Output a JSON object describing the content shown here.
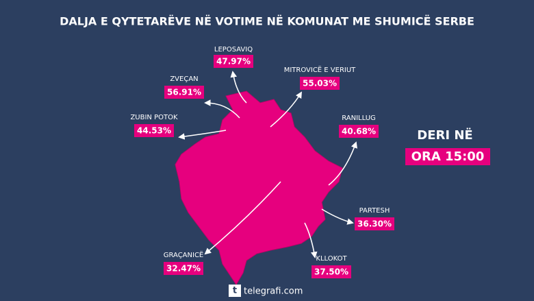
{
  "title": "DALJA E QYTETARËVE NË VOTIME NË KOMUNAT ME SHUMICË SERBE",
  "municipalities": [
    {
      "name": "LEPOSAVIQ",
      "turnout": "47.97%"
    },
    {
      "name": "ZVEÇAN",
      "turnout": "56.91%"
    },
    {
      "name": "ZUBIN POTOK",
      "turnout": "44.53%"
    },
    {
      "name": "MITROVICË E VERIUT",
      "turnout": "55.03%"
    },
    {
      "name": "RANILLUG",
      "turnout": "40.68%"
    },
    {
      "name": "PARTESH",
      "turnout": "36.30%"
    },
    {
      "name": "KLLOKOT",
      "turnout": "37.50%"
    },
    {
      "name": "GRAÇANICË",
      "turnout": "32.47%"
    }
  ],
  "time_note": {
    "line1": "DERI NË",
    "line2": "ORA 15:00"
  },
  "logo": "telegrafi.com"
}
